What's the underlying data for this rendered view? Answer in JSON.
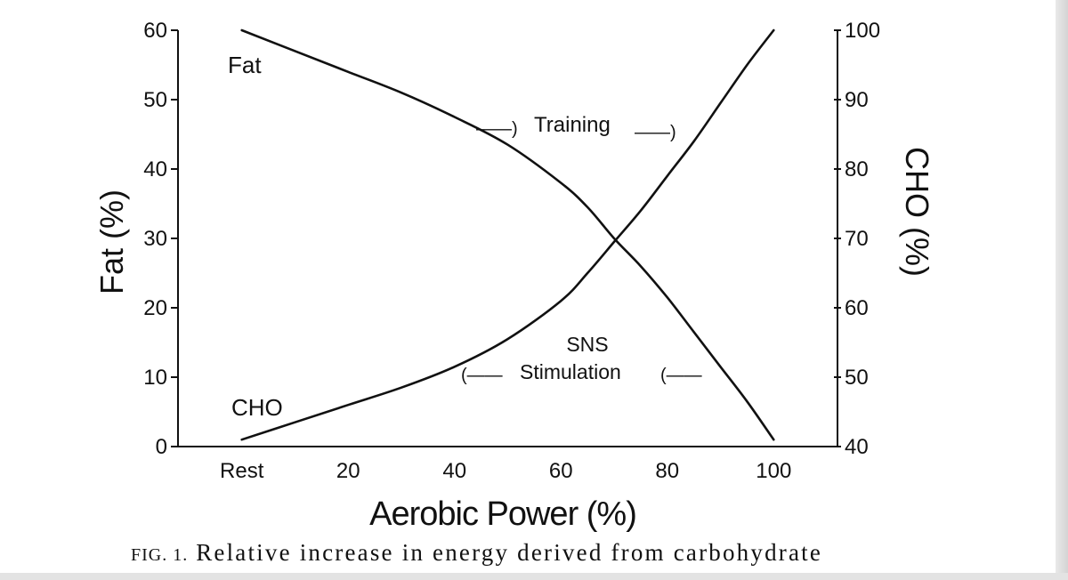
{
  "chart_data": {
    "type": "line",
    "xlabel": "Aerobic Power (%)",
    "ylabel_left": "Fat (%)",
    "ylabel_right": "CHO (%)",
    "x_tick_labels": [
      "Rest",
      "20",
      "40",
      "60",
      "80",
      "100"
    ],
    "x_ticks": [
      0,
      20,
      40,
      60,
      80,
      100
    ],
    "xlim": [
      -12,
      112
    ],
    "ylim_left": [
      0,
      60
    ],
    "ylim_right": [
      40,
      100
    ],
    "y_left_ticks": [
      "0",
      "10",
      "20",
      "30",
      "40",
      "50",
      "60"
    ],
    "y_right_ticks": [
      "40",
      "50",
      "60",
      "70",
      "80",
      "90",
      "100"
    ],
    "series": [
      {
        "name": "Fat",
        "axis": "left",
        "x": [
          0,
          10,
          20,
          30,
          40,
          50,
          60,
          65,
          70,
          75,
          80,
          85,
          90,
          95,
          100
        ],
        "y": [
          60,
          57,
          54,
          51,
          47.5,
          43.5,
          38,
          34.5,
          30,
          26,
          21.5,
          16.5,
          11.5,
          6.5,
          1
        ]
      },
      {
        "name": "CHO",
        "axis": "right",
        "x": [
          0,
          10,
          20,
          30,
          40,
          50,
          60,
          65,
          70,
          75,
          80,
          85,
          90,
          95,
          100
        ],
        "y": [
          41,
          43.5,
          46,
          48.5,
          51.5,
          55.5,
          61,
          65,
          69.5,
          74,
          79,
          84,
          89.5,
          95,
          100
        ]
      }
    ],
    "annotations": {
      "fat_label": "Fat",
      "cho_label": "CHO",
      "training_arrow_1": "——)",
      "training_text": "Training",
      "training_arrow_2": "——)",
      "sns_line1": "SNS",
      "sns_arrow_1": "(——",
      "sns_line2": "Stimulation",
      "sns_arrow_2": "(——"
    }
  },
  "caption": {
    "label": "FIG. 1.",
    "text": "Relative increase in energy derived from carbohydrate"
  },
  "colors": {
    "ink": "#111111",
    "background": "#ffffff"
  }
}
